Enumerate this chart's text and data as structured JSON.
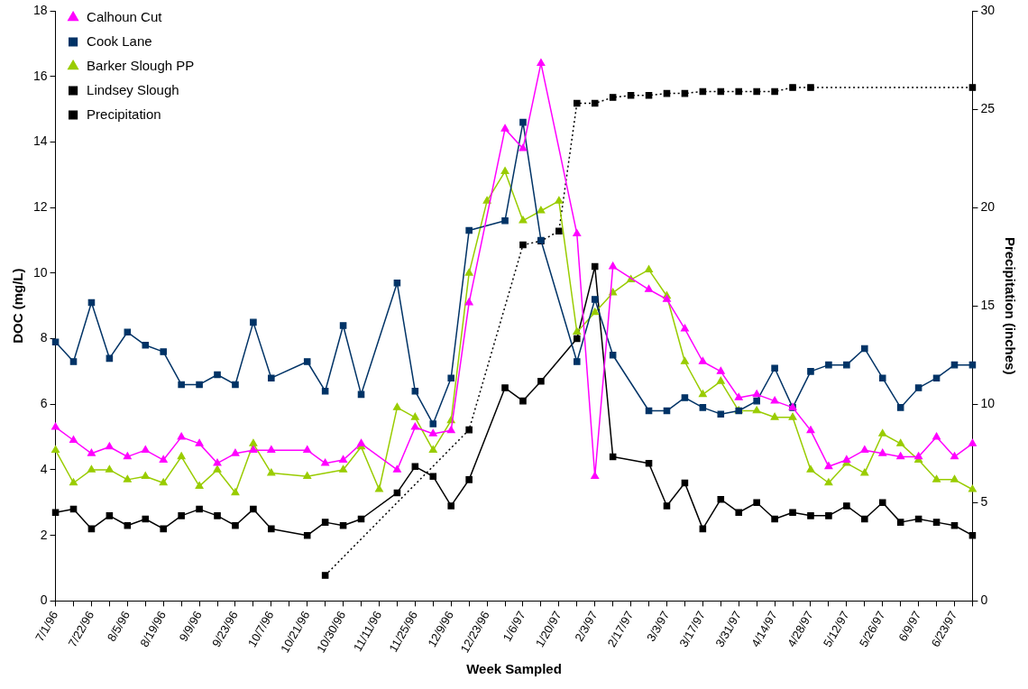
{
  "chart_data": {
    "type": "line",
    "xlabel": "Week Sampled",
    "ylabel": "DOC (mg/L)",
    "y2label": "Precipitation (inches)",
    "categories": [
      "7/1/96",
      null,
      "7/22/96",
      null,
      "8/5/96",
      null,
      "8/19/96",
      null,
      "9/9/96",
      null,
      "9/23/96",
      null,
      "10/7/96",
      null,
      "10/21/96",
      null,
      "10/30/96",
      null,
      "11/11/96",
      null,
      "11/25/96",
      null,
      "12/9/96",
      null,
      "12/23/96",
      null,
      "1/6/97",
      null,
      "1/20/97",
      null,
      "2/3/97",
      null,
      "2/17/97",
      null,
      "3/3/97",
      null,
      "3/17/97",
      null,
      "3/31/97",
      null,
      "4/14/97",
      null,
      "4/28/97",
      null,
      "5/12/97",
      null,
      "5/26/97",
      null,
      "6/9/97",
      null,
      "6/23/97",
      null
    ],
    "series": [
      {
        "name": "Calhoun Cut",
        "color": "#ff00ff",
        "marker": "triangle",
        "values": [
          5.3,
          4.9,
          4.5,
          4.7,
          4.4,
          4.6,
          4.3,
          5.0,
          4.8,
          4.2,
          4.5,
          4.6,
          4.6,
          null,
          4.6,
          4.2,
          4.3,
          4.8,
          null,
          4.0,
          5.3,
          5.1,
          5.2,
          9.1,
          null,
          14.4,
          13.8,
          16.4,
          null,
          11.2,
          3.8,
          10.2,
          null,
          9.5,
          9.2,
          8.3,
          7.3,
          7.0,
          6.2,
          6.3,
          6.1,
          5.9,
          5.2,
          4.1,
          4.3,
          4.6,
          4.5,
          4.4,
          4.4,
          5.0,
          4.4,
          4.8
        ]
      },
      {
        "name": "Cook Lane",
        "color": "#003366",
        "marker": "square",
        "values": [
          7.9,
          7.3,
          9.1,
          7.4,
          8.2,
          7.8,
          7.6,
          6.6,
          6.6,
          6.9,
          6.6,
          8.5,
          6.8,
          null,
          7.3,
          6.4,
          8.4,
          6.3,
          null,
          9.7,
          6.4,
          5.4,
          6.8,
          11.3,
          null,
          11.6,
          14.6,
          11.0,
          null,
          7.3,
          9.2,
          7.5,
          null,
          5.8,
          5.8,
          6.2,
          5.9,
          5.7,
          5.8,
          6.1,
          7.1,
          5.9,
          7.0,
          7.2,
          7.2,
          7.7,
          6.8,
          5.9,
          6.5,
          6.8,
          7.2,
          7.2
        ]
      },
      {
        "name": "Barker Slough PP",
        "color": "#99cc00",
        "marker": "triangle",
        "values": [
          4.6,
          3.6,
          4.0,
          4.0,
          3.7,
          3.8,
          3.6,
          4.4,
          3.5,
          4.0,
          3.3,
          4.8,
          3.9,
          null,
          3.8,
          null,
          4.0,
          4.7,
          3.4,
          5.9,
          5.6,
          4.6,
          5.5,
          10.0,
          12.2,
          13.1,
          11.6,
          11.9,
          12.2,
          8.2,
          8.8,
          9.4,
          9.8,
          10.1,
          9.3,
          7.3,
          6.3,
          6.7,
          5.8,
          5.8,
          5.6,
          5.6,
          4.0,
          3.6,
          4.2,
          3.9,
          5.1,
          4.8,
          4.3,
          3.7,
          3.7,
          3.4
        ]
      },
      {
        "name": "Lindsey Slough",
        "color": "#000000",
        "marker": "square",
        "values": [
          2.7,
          2.8,
          2.2,
          2.6,
          2.3,
          2.5,
          2.2,
          2.6,
          2.8,
          2.6,
          2.3,
          2.8,
          2.2,
          null,
          2.0,
          2.4,
          2.3,
          2.5,
          null,
          3.3,
          4.1,
          3.8,
          2.9,
          3.7,
          null,
          6.5,
          6.1,
          6.7,
          null,
          8.0,
          10.2,
          4.4,
          null,
          4.2,
          2.9,
          3.6,
          2.2,
          3.1,
          2.7,
          3.0,
          2.5,
          2.7,
          2.6,
          2.6,
          2.9,
          2.5,
          3.0,
          2.4,
          2.5,
          2.4,
          2.3,
          2.0
        ]
      },
      {
        "name": "Precipitation",
        "color": "#000000",
        "marker": "square",
        "line_style": "dotted",
        "axis": "y2",
        "values": [
          null,
          null,
          null,
          null,
          null,
          null,
          null,
          null,
          null,
          null,
          null,
          null,
          null,
          null,
          null,
          1.3,
          null,
          null,
          null,
          null,
          null,
          null,
          null,
          8.7,
          null,
          null,
          18.1,
          18.3,
          18.8,
          25.3,
          25.3,
          25.6,
          25.7,
          25.7,
          25.8,
          25.8,
          25.9,
          25.9,
          25.9,
          25.9,
          25.9,
          26.1,
          26.1,
          null,
          null,
          null,
          null,
          null,
          null,
          null,
          null,
          26.1
        ]
      }
    ],
    "ylim": [
      0,
      18
    ],
    "yticks": [
      0,
      2,
      4,
      6,
      8,
      10,
      12,
      14,
      16,
      18
    ],
    "y2lim": [
      0,
      30
    ],
    "y2ticks": [
      0,
      5,
      10,
      15,
      20,
      25,
      30
    ],
    "grid": false,
    "legend": "top left"
  }
}
